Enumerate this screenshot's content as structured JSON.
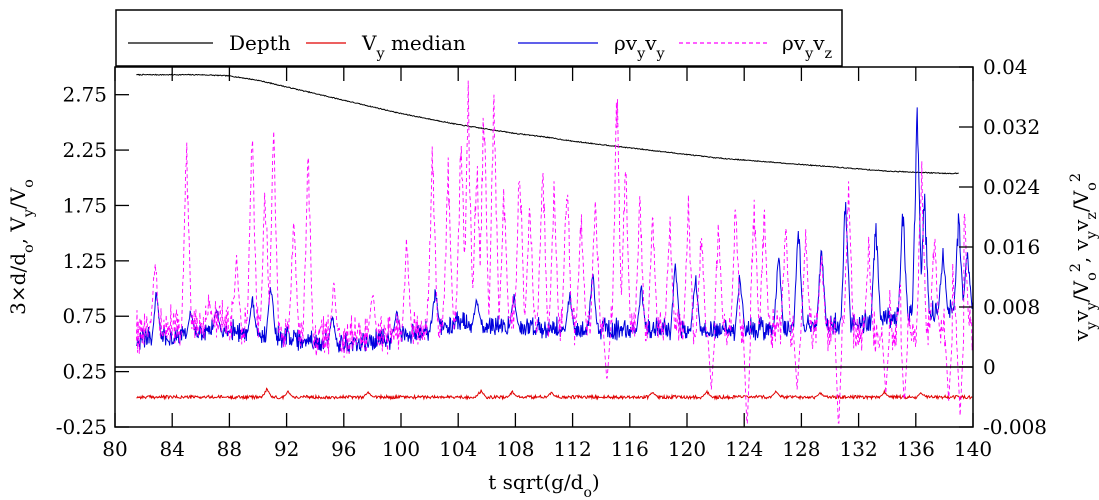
{
  "chart_data": {
    "type": "line",
    "title": "",
    "xlabel": "t sqrt(g/d",
    "xlabel_sub": "o",
    "xlabel_end": ")",
    "ylabel_left": {
      "parts": [
        {
          "t": "3×d/d"
        },
        {
          "t": "o",
          "sub": true
        },
        {
          "t": ", V"
        },
        {
          "t": "y",
          "sub": true
        },
        {
          "t": "/V"
        },
        {
          "t": "o",
          "sub": true
        }
      ]
    },
    "ylabel_right": {
      "parts": [
        {
          "t": "v"
        },
        {
          "t": "y",
          "sub": true
        },
        {
          "t": "v"
        },
        {
          "t": "y",
          "sub": true
        },
        {
          "t": "/V"
        },
        {
          "t": "o",
          "sub": true
        },
        {
          "t": "2",
          "sup": true
        },
        {
          "t": ", v"
        },
        {
          "t": "y",
          "sub": true
        },
        {
          "t": "v"
        },
        {
          "t": "z",
          "sub": true
        },
        {
          "t": "/V"
        },
        {
          "t": "o",
          "sub": true
        },
        {
          "t": "2",
          "sup": true
        }
      ]
    },
    "xlim": [
      80,
      140
    ],
    "ylim_left": [
      -0.25,
      3.0
    ],
    "ylim_right": [
      -0.008,
      0.04
    ],
    "x_ticks": [
      "80",
      "84",
      "88",
      "92",
      "96",
      "100",
      "104",
      "108",
      "112",
      "116",
      "120",
      "124",
      "128",
      "132",
      "136",
      "140"
    ],
    "y_left_ticks": [
      "-0.25",
      "0.25",
      "0.75",
      "1.25",
      "1.75",
      "2.25",
      "2.75"
    ],
    "y_right_ticks": [
      "-0.008",
      "0",
      "0.008",
      "0.016",
      "0.024",
      "0.032",
      "0.04"
    ],
    "legend_placement": "top-center",
    "legend": [
      {
        "parts": [
          {
            "t": "Depth"
          }
        ],
        "color": "#000000",
        "dash": ""
      },
      {
        "parts": [
          {
            "t": "V"
          },
          {
            "t": "y",
            "sub": true
          },
          {
            "t": " median"
          }
        ],
        "color": "#e00000",
        "dash": ""
      },
      {
        "parts": [
          {
            "t": "ρv"
          },
          {
            "t": "y",
            "sub": true
          },
          {
            "t": "v"
          },
          {
            "t": "y",
            "sub": true
          }
        ],
        "color": "#0000dd",
        "dash": ""
      },
      {
        "parts": [
          {
            "t": "ρv"
          },
          {
            "t": "y",
            "sub": true
          },
          {
            "t": "v"
          },
          {
            "t": "z",
            "sub": true
          }
        ],
        "color": "#ff00ff",
        "dash": "4,3"
      }
    ],
    "series": [
      {
        "name": "Depth",
        "axis": "left",
        "color": "#000000",
        "style": "solid",
        "x": [
          81.5,
          84,
          86,
          88,
          90,
          92,
          94,
          96,
          98,
          100,
          102,
          104,
          106,
          108,
          110,
          112,
          114,
          116,
          118,
          120,
          122,
          124,
          126,
          128,
          130,
          132,
          134,
          136,
          138,
          139
        ],
        "y": [
          2.93,
          2.93,
          2.93,
          2.92,
          2.88,
          2.82,
          2.76,
          2.7,
          2.64,
          2.58,
          2.53,
          2.48,
          2.44,
          2.4,
          2.37,
          2.33,
          2.3,
          2.27,
          2.24,
          2.21,
          2.18,
          2.16,
          2.14,
          2.12,
          2.1,
          2.08,
          2.06,
          2.05,
          2.04,
          2.04
        ]
      },
      {
        "name": "V median",
        "axis": "left",
        "color": "#e00000",
        "style": "solid",
        "x_start": 81.5,
        "x_end": 140,
        "base": 0.02,
        "amplitude": 0.03,
        "peaks": [
          [
            90.6,
            0.11
          ],
          [
            92.1,
            0.09
          ],
          [
            97.7,
            0.08
          ],
          [
            105.6,
            0.1
          ],
          [
            107.8,
            0.08
          ],
          [
            110.5,
            0.07
          ],
          [
            117.6,
            0.08
          ],
          [
            121.4,
            0.08
          ],
          [
            126.2,
            0.08
          ],
          [
            129.3,
            0.07
          ],
          [
            133.8,
            0.08
          ],
          [
            136.4,
            0.07
          ]
        ]
      },
      {
        "name": "ρvyvy",
        "axis": "right",
        "color": "#0000dd",
        "style": "solid",
        "x_start": 81.5,
        "x_end": 140,
        "envelope_x": [
          81.5,
          84,
          88,
          92,
          96,
          100,
          104,
          108,
          112,
          116,
          120,
          124,
          128,
          132,
          136,
          140
        ],
        "envelope_base": [
          0.003,
          0.0035,
          0.0045,
          0.0035,
          0.0025,
          0.0035,
          0.0055,
          0.005,
          0.0045,
          0.0045,
          0.0045,
          0.0045,
          0.005,
          0.0055,
          0.0065,
          0.0075
        ],
        "noise": 0.0025,
        "peaks": [
          [
            82.9,
            0.011
          ],
          [
            85.3,
            0.008
          ],
          [
            87.1,
            0.0085
          ],
          [
            89.6,
            0.01
          ],
          [
            90.9,
            0.012
          ],
          [
            95.2,
            0.0075
          ],
          [
            99.7,
            0.0085
          ],
          [
            102.4,
            0.011
          ],
          [
            105.3,
            0.0095
          ],
          [
            107.9,
            0.01
          ],
          [
            111.8,
            0.0105
          ],
          [
            113.4,
            0.0135
          ],
          [
            116.8,
            0.0115
          ],
          [
            119.2,
            0.0155
          ],
          [
            120.6,
            0.0135
          ],
          [
            123.7,
            0.0135
          ],
          [
            126.4,
            0.0165
          ],
          [
            127.8,
            0.0205
          ],
          [
            129.4,
            0.0175
          ],
          [
            131.1,
            0.0255
          ],
          [
            133.2,
            0.0205
          ],
          [
            135.1,
            0.0225
          ],
          [
            136.1,
            0.0365
          ],
          [
            136.6,
            0.0245
          ],
          [
            137.9,
            0.0165
          ],
          [
            139.0,
            0.0215
          ],
          [
            139.6,
            0.0165
          ]
        ]
      },
      {
        "name": "ρvyvz",
        "axis": "right",
        "color": "#ff00ff",
        "style": "dashed",
        "x_start": 81.5,
        "x_end": 140,
        "envelope_x": [
          81.5,
          84,
          88,
          92,
          96,
          100,
          104,
          108,
          112,
          116,
          120,
          124,
          128,
          132,
          136,
          140
        ],
        "envelope_base": [
          0.004,
          0.0045,
          0.0055,
          0.004,
          0.003,
          0.004,
          0.006,
          0.0055,
          0.005,
          0.0045,
          0.0045,
          0.004,
          0.0045,
          0.004,
          0.004,
          0.004
        ],
        "noise": 0.005,
        "peaks": [
          [
            82.8,
            0.016
          ],
          [
            85.0,
            0.032
          ],
          [
            86.6,
            0.0085
          ],
          [
            88.5,
            0.015
          ],
          [
            89.6,
            0.0345
          ],
          [
            90.5,
            0.026
          ],
          [
            91.1,
            0.0355
          ],
          [
            92.5,
            0.022
          ],
          [
            93.5,
            0.032
          ],
          [
            95.3,
            0.012
          ],
          [
            98.0,
            0.0115
          ],
          [
            100.4,
            0.018
          ],
          [
            102.2,
            0.032
          ],
          [
            103.3,
            0.028
          ],
          [
            104.2,
            0.034
          ],
          [
            104.7,
            0.0385
          ],
          [
            105.3,
            0.03
          ],
          [
            105.8,
            0.0395
          ],
          [
            106.5,
            0.0405
          ],
          [
            107.2,
            0.025
          ],
          [
            108.3,
            0.031
          ],
          [
            109.0,
            0.024
          ],
          [
            109.9,
            0.0305
          ],
          [
            110.7,
            0.0255
          ],
          [
            111.6,
            0.029
          ],
          [
            112.6,
            0.022
          ],
          [
            113.6,
            0.0255
          ],
          [
            115.1,
            0.0405
          ],
          [
            115.7,
            0.0305
          ],
          [
            116.7,
            0.025
          ],
          [
            117.6,
            0.022
          ],
          [
            118.8,
            0.0215
          ],
          [
            120.1,
            0.0235
          ],
          [
            121.0,
            0.02
          ],
          [
            122.2,
            0.021
          ],
          [
            123.4,
            0.0245
          ],
          [
            124.7,
            0.024
          ],
          [
            125.4,
            0.0225
          ],
          [
            126.9,
            0.021
          ],
          [
            128.3,
            0.019
          ],
          [
            129.4,
            0.016
          ],
          [
            130.6,
            0.014
          ],
          [
            131.3,
            0.027
          ],
          [
            132.7,
            0.018
          ],
          [
            134.0,
            0.017
          ],
          [
            135.0,
            0.015
          ],
          [
            136.4,
            0.029
          ],
          [
            137.3,
            0.019
          ],
          [
            138.5,
            0.018
          ],
          [
            139.4,
            0.0215
          ]
        ],
        "dips": [
          [
            114.4,
            -0.002
          ],
          [
            121.7,
            -0.003
          ],
          [
            124.2,
            -0.0085
          ],
          [
            127.7,
            -0.003
          ],
          [
            130.6,
            -0.0085
          ],
          [
            133.9,
            -0.0035
          ],
          [
            135.2,
            -0.005
          ],
          [
            138.3,
            -0.0045
          ],
          [
            139.1,
            -0.0065
          ]
        ]
      },
      {
        "name": "zero",
        "axis": "right",
        "color": "#000000",
        "style": "solid",
        "y": 0
      }
    ]
  }
}
